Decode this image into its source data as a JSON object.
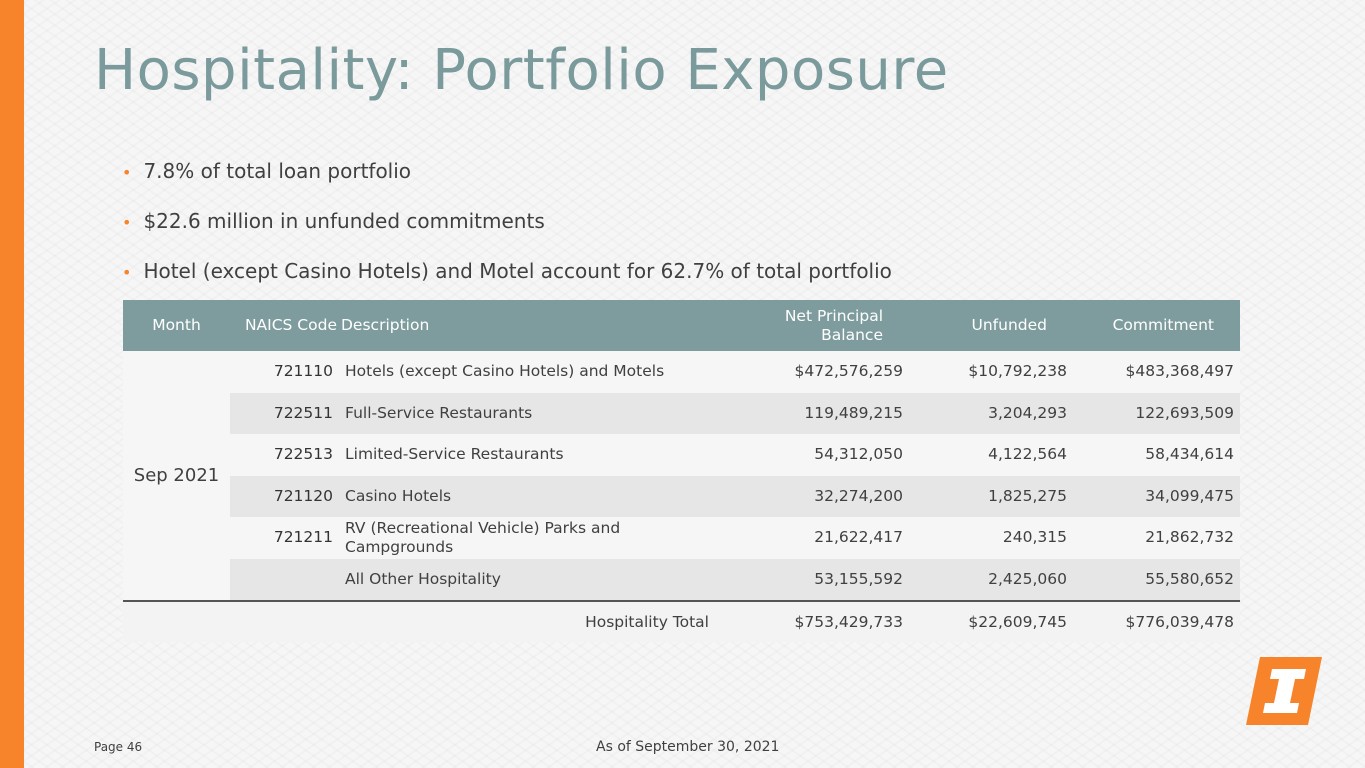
{
  "title": "Hospitality: Portfolio Exposure",
  "bullets": [
    "7.8% of total loan portfolio",
    "$22.6 million in unfunded commitments",
    "Hotel (except Casino Hotels) and Motel account for 62.7% of total portfolio"
  ],
  "table": {
    "headers": {
      "month": "Month",
      "naics": "NAICS Code",
      "description": "Description",
      "net_principal": "Net Principal Balance",
      "unfunded": "Unfunded",
      "commitment": "Commitment"
    },
    "month": "Sep 2021",
    "rows": [
      {
        "code": "721110",
        "description": "Hotels (except Casino Hotels) and Motels",
        "net_principal": "$472,576,259",
        "unfunded": "$10,792,238",
        "commitment": "$483,368,497"
      },
      {
        "code": "722511",
        "description": "Full-Service Restaurants",
        "net_principal": "119,489,215",
        "unfunded": "3,204,293",
        "commitment": "122,693,509"
      },
      {
        "code": "722513",
        "description": "Limited-Service Restaurants",
        "net_principal": "54,312,050",
        "unfunded": "4,122,564",
        "commitment": "58,434,614"
      },
      {
        "code": "721120",
        "description": "Casino Hotels",
        "net_principal": "32,274,200",
        "unfunded": "1,825,275",
        "commitment": "34,099,475"
      },
      {
        "code": "721211",
        "description": "RV (Recreational Vehicle) Parks and Campgrounds",
        "net_principal": "21,622,417",
        "unfunded": "240,315",
        "commitment": "21,862,732"
      },
      {
        "code": "",
        "description": "All Other Hospitality",
        "net_principal": "53,155,592",
        "unfunded": "2,425,060",
        "commitment": "55,580,652"
      }
    ],
    "total": {
      "label": "Hospitality Total",
      "net_principal": "$753,429,733",
      "unfunded": "$22,609,745",
      "commitment": "$776,039,478"
    }
  },
  "footer": {
    "page": "Page 46",
    "date": "As of September 30, 2021"
  },
  "colors": {
    "accent": "#f7842a",
    "title": "#7a9a9b",
    "header_bg": "#7e9c9d"
  },
  "logo_icon": "bank-logo-icon"
}
